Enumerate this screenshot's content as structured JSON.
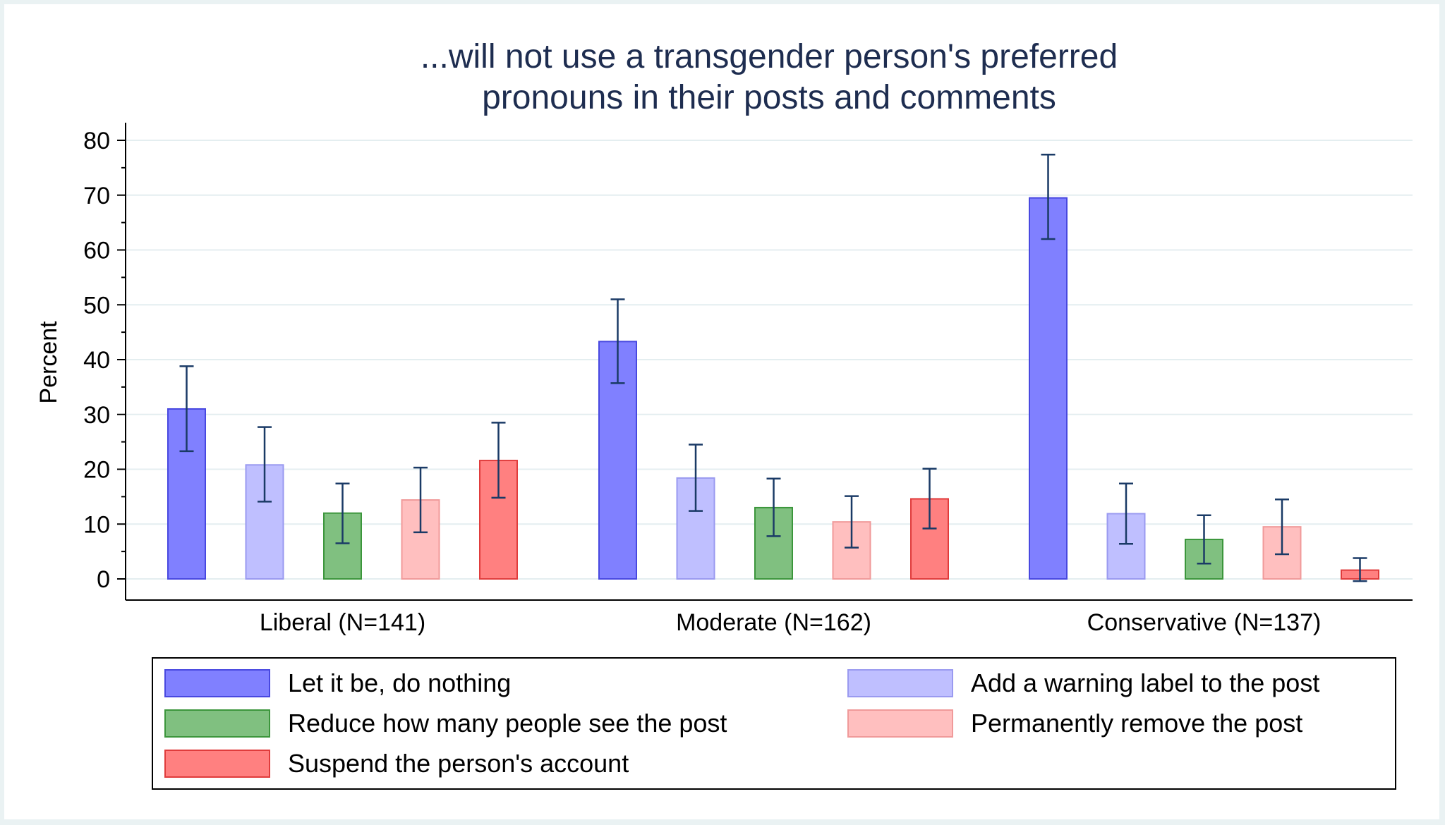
{
  "chart_data": {
    "type": "bar",
    "title_lines": [
      "...will not use a transgender person's preferred",
      "pronouns in their posts and comments"
    ],
    "xlabel": "",
    "ylabel": "Percent",
    "ylim": [
      0,
      80
    ],
    "yticks": [
      0,
      10,
      20,
      30,
      40,
      50,
      60,
      70,
      80
    ],
    "grid": true,
    "categories": [
      "Liberal (N=141)",
      "Moderate (N=162)",
      "Conservative (N=137)"
    ],
    "series": [
      {
        "name": "Let it be, do nothing",
        "color": "#8080ff",
        "stroke": "#4848e0",
        "values": [
          31,
          43.3,
          69.5
        ],
        "ci_low": [
          23.3,
          35.7,
          62
        ],
        "ci_high": [
          38.8,
          51,
          77.4
        ]
      },
      {
        "name": "Add a warning label to the post",
        "color": "#bfbfff",
        "stroke": "#9a9af0",
        "values": [
          20.8,
          18.4,
          11.9
        ],
        "ci_low": [
          14.1,
          12.4,
          6.4
        ],
        "ci_high": [
          27.7,
          24.5,
          17.4
        ]
      },
      {
        "name": "Reduce how many people see the post",
        "color": "#80c080",
        "stroke": "#3c963c",
        "values": [
          12,
          13,
          7.2
        ],
        "ci_low": [
          6.5,
          7.8,
          2.8
        ],
        "ci_high": [
          17.4,
          18.3,
          11.6
        ]
      },
      {
        "name": "Permanently remove the post",
        "color": "#ffbfbf",
        "stroke": "#f09a9a",
        "values": [
          14.4,
          10.4,
          9.5
        ],
        "ci_low": [
          8.5,
          5.7,
          4.5
        ],
        "ci_high": [
          20.3,
          15.1,
          14.5
        ]
      },
      {
        "name": "Suspend the person's account",
        "color": "#ff8080",
        "stroke": "#e03c3c",
        "values": [
          21.6,
          14.6,
          1.6
        ],
        "ci_low": [
          14.8,
          9.2,
          -0.4
        ],
        "ci_high": [
          28.5,
          20.1,
          3.8
        ]
      }
    ],
    "legend": {
      "placement": "bottom",
      "order": [
        0,
        1,
        2,
        3,
        4
      ]
    }
  },
  "colors": {
    "title": "#1e2d50",
    "errorbar": "#1a3a66",
    "grid": "#e4eef0",
    "axis": "#000000"
  }
}
